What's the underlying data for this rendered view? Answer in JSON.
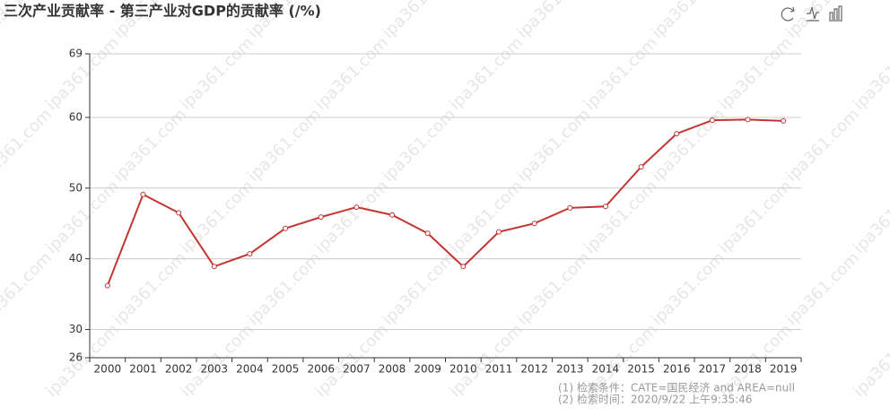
{
  "chart_data": {
    "type": "line",
    "title": "三次产业贡献率 - 第三产业对GDP的贡献率 (/%)",
    "categories": [
      "2000",
      "2001",
      "2002",
      "2003",
      "2004",
      "2005",
      "2006",
      "2007",
      "2008",
      "2009",
      "2010",
      "2011",
      "2012",
      "2013",
      "2014",
      "2015",
      "2016",
      "2017",
      "2018",
      "2019"
    ],
    "series": [
      {
        "name": "第三产业对GDP的贡献率",
        "color": "#c23531",
        "values": [
          36.2,
          49.1,
          46.5,
          38.9,
          40.7,
          44.3,
          45.9,
          47.3,
          46.2,
          43.6,
          38.9,
          43.8,
          45.0,
          47.2,
          47.4,
          53.0,
          57.7,
          59.6,
          59.7,
          59.5
        ]
      }
    ],
    "ylim": [
      26,
      69
    ],
    "yticks": [
      26,
      30,
      40,
      50,
      60,
      69
    ],
    "grid": true,
    "notes": [
      "(1) 检索条件：CATE=国民经济 and AREA=null",
      "(2) 检索时间：2020/9/22 上午9:35:46"
    ],
    "watermark": "ipa361.com"
  }
}
